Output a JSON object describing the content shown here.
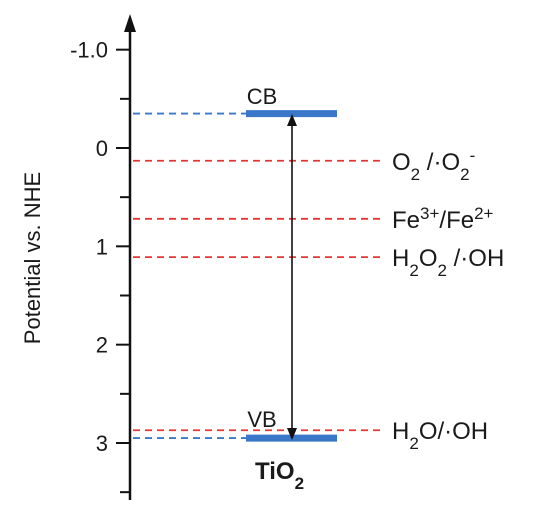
{
  "colors": {
    "band_edge": "#3a77c8",
    "redox_line": "#e63535",
    "band_ext_line": "#3a77c8",
    "axis": "#111111"
  },
  "axis": {
    "title": "Potential vs. NHE",
    "direction": "increasing-downward",
    "ticks": [
      "-1.0",
      "0",
      "1",
      "2",
      "3"
    ]
  },
  "material": {
    "main": "TiO",
    "sub": "2"
  },
  "bands": {
    "cb_label": "CB",
    "vb_label": "VB",
    "cb_potential": -0.35,
    "vb_potential": 2.95
  },
  "couples": [
    {
      "potential": 0.13,
      "parts": [
        {
          "t": "O"
        },
        {
          "t": "2",
          "s": "sub"
        },
        {
          "t": " /·O"
        },
        {
          "t": "2",
          "s": "sub"
        },
        {
          "t": "-",
          "s": "sup"
        }
      ]
    },
    {
      "potential": 0.72,
      "parts": [
        {
          "t": "Fe"
        },
        {
          "t": "3+",
          "s": "sup"
        },
        {
          "t": "/Fe"
        },
        {
          "t": "2+",
          "s": "sup"
        }
      ]
    },
    {
      "potential": 1.11,
      "parts": [
        {
          "t": "H"
        },
        {
          "t": "2",
          "s": "sub"
        },
        {
          "t": "O"
        },
        {
          "t": "2",
          "s": "sub"
        },
        {
          "t": " /·OH"
        }
      ]
    },
    {
      "potential": 2.87,
      "parts": [
        {
          "t": "H"
        },
        {
          "t": "2",
          "s": "sub"
        },
        {
          "t": "O/·OH"
        }
      ]
    }
  ]
}
